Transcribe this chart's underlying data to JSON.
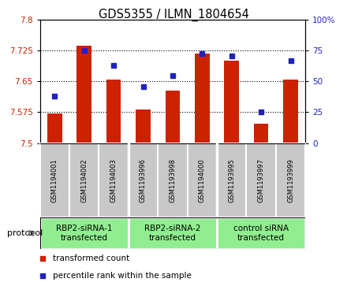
{
  "title": "GDS5355 / ILMN_1804654",
  "samples": [
    "GSM1194001",
    "GSM1194002",
    "GSM1194003",
    "GSM1193996",
    "GSM1193998",
    "GSM1194000",
    "GSM1193995",
    "GSM1193997",
    "GSM1193999"
  ],
  "red_values": [
    7.572,
    7.737,
    7.655,
    7.582,
    7.628,
    7.718,
    7.7,
    7.547,
    7.655
  ],
  "blue_values": [
    38,
    75,
    63,
    46,
    55,
    73,
    71,
    25,
    67
  ],
  "ylim_left": [
    7.5,
    7.8
  ],
  "ylim_right": [
    0,
    100
  ],
  "yticks_left": [
    7.5,
    7.575,
    7.65,
    7.725,
    7.8
  ],
  "ytick_labels_left": [
    "7.5",
    "7.575",
    "7.65",
    "7.725",
    "7.8"
  ],
  "yticks_right": [
    0,
    25,
    50,
    75,
    100
  ],
  "ytick_labels_right": [
    "0",
    "25",
    "50",
    "75",
    "100%"
  ],
  "group_configs": [
    [
      0,
      2,
      "RBP2-siRNA-1\ntransfected"
    ],
    [
      3,
      5,
      "RBP2-siRNA-2\ntransfected"
    ],
    [
      6,
      8,
      "control siRNA\ntransfected"
    ]
  ],
  "red_color": "#CC2200",
  "blue_color": "#2222BB",
  "bar_bottom": 7.5,
  "bg_sample_boxes": "#C8C8C8",
  "group_box_color": "#90EE90",
  "protocol_label": "protocol",
  "legend_red": "transformed count",
  "legend_blue": "percentile rank within the sample",
  "bar_width": 0.5
}
